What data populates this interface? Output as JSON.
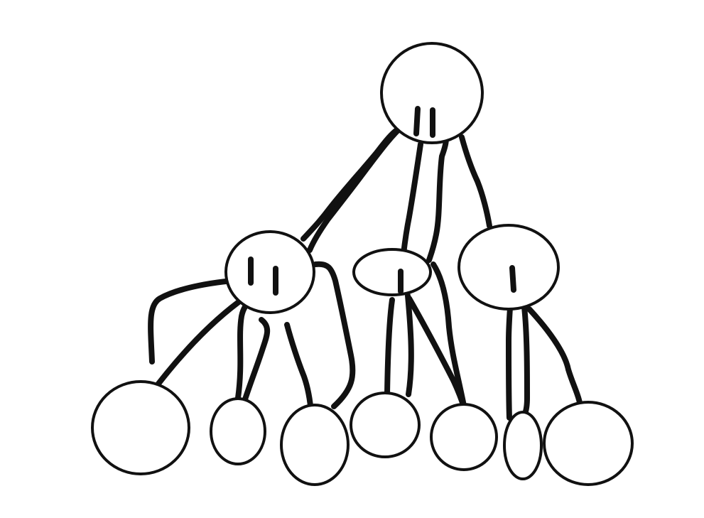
{
  "diagram": {
    "type": "tree",
    "style": "hand-drawn",
    "colors": {
      "background": "#ffffff",
      "ink": "#111111"
    },
    "levels": 3,
    "nodes": [
      {
        "id": "root",
        "level": 0,
        "children": [
          "mid-left",
          "mid-center",
          "mid-right"
        ]
      },
      {
        "id": "mid-left",
        "level": 1,
        "children": [
          "leaf-1",
          "leaf-2",
          "leaf-3"
        ]
      },
      {
        "id": "mid-center",
        "level": 1,
        "children": [
          "leaf-4",
          "leaf-5"
        ]
      },
      {
        "id": "mid-right",
        "level": 1,
        "children": [
          "leaf-6",
          "leaf-7"
        ]
      },
      {
        "id": "leaf-1",
        "level": 2,
        "children": []
      },
      {
        "id": "leaf-2",
        "level": 2,
        "children": []
      },
      {
        "id": "leaf-3",
        "level": 2,
        "children": []
      },
      {
        "id": "leaf-4",
        "level": 2,
        "children": []
      },
      {
        "id": "leaf-5",
        "level": 2,
        "children": []
      },
      {
        "id": "leaf-6",
        "level": 2,
        "children": []
      },
      {
        "id": "leaf-7",
        "level": 2,
        "children": []
      }
    ]
  }
}
